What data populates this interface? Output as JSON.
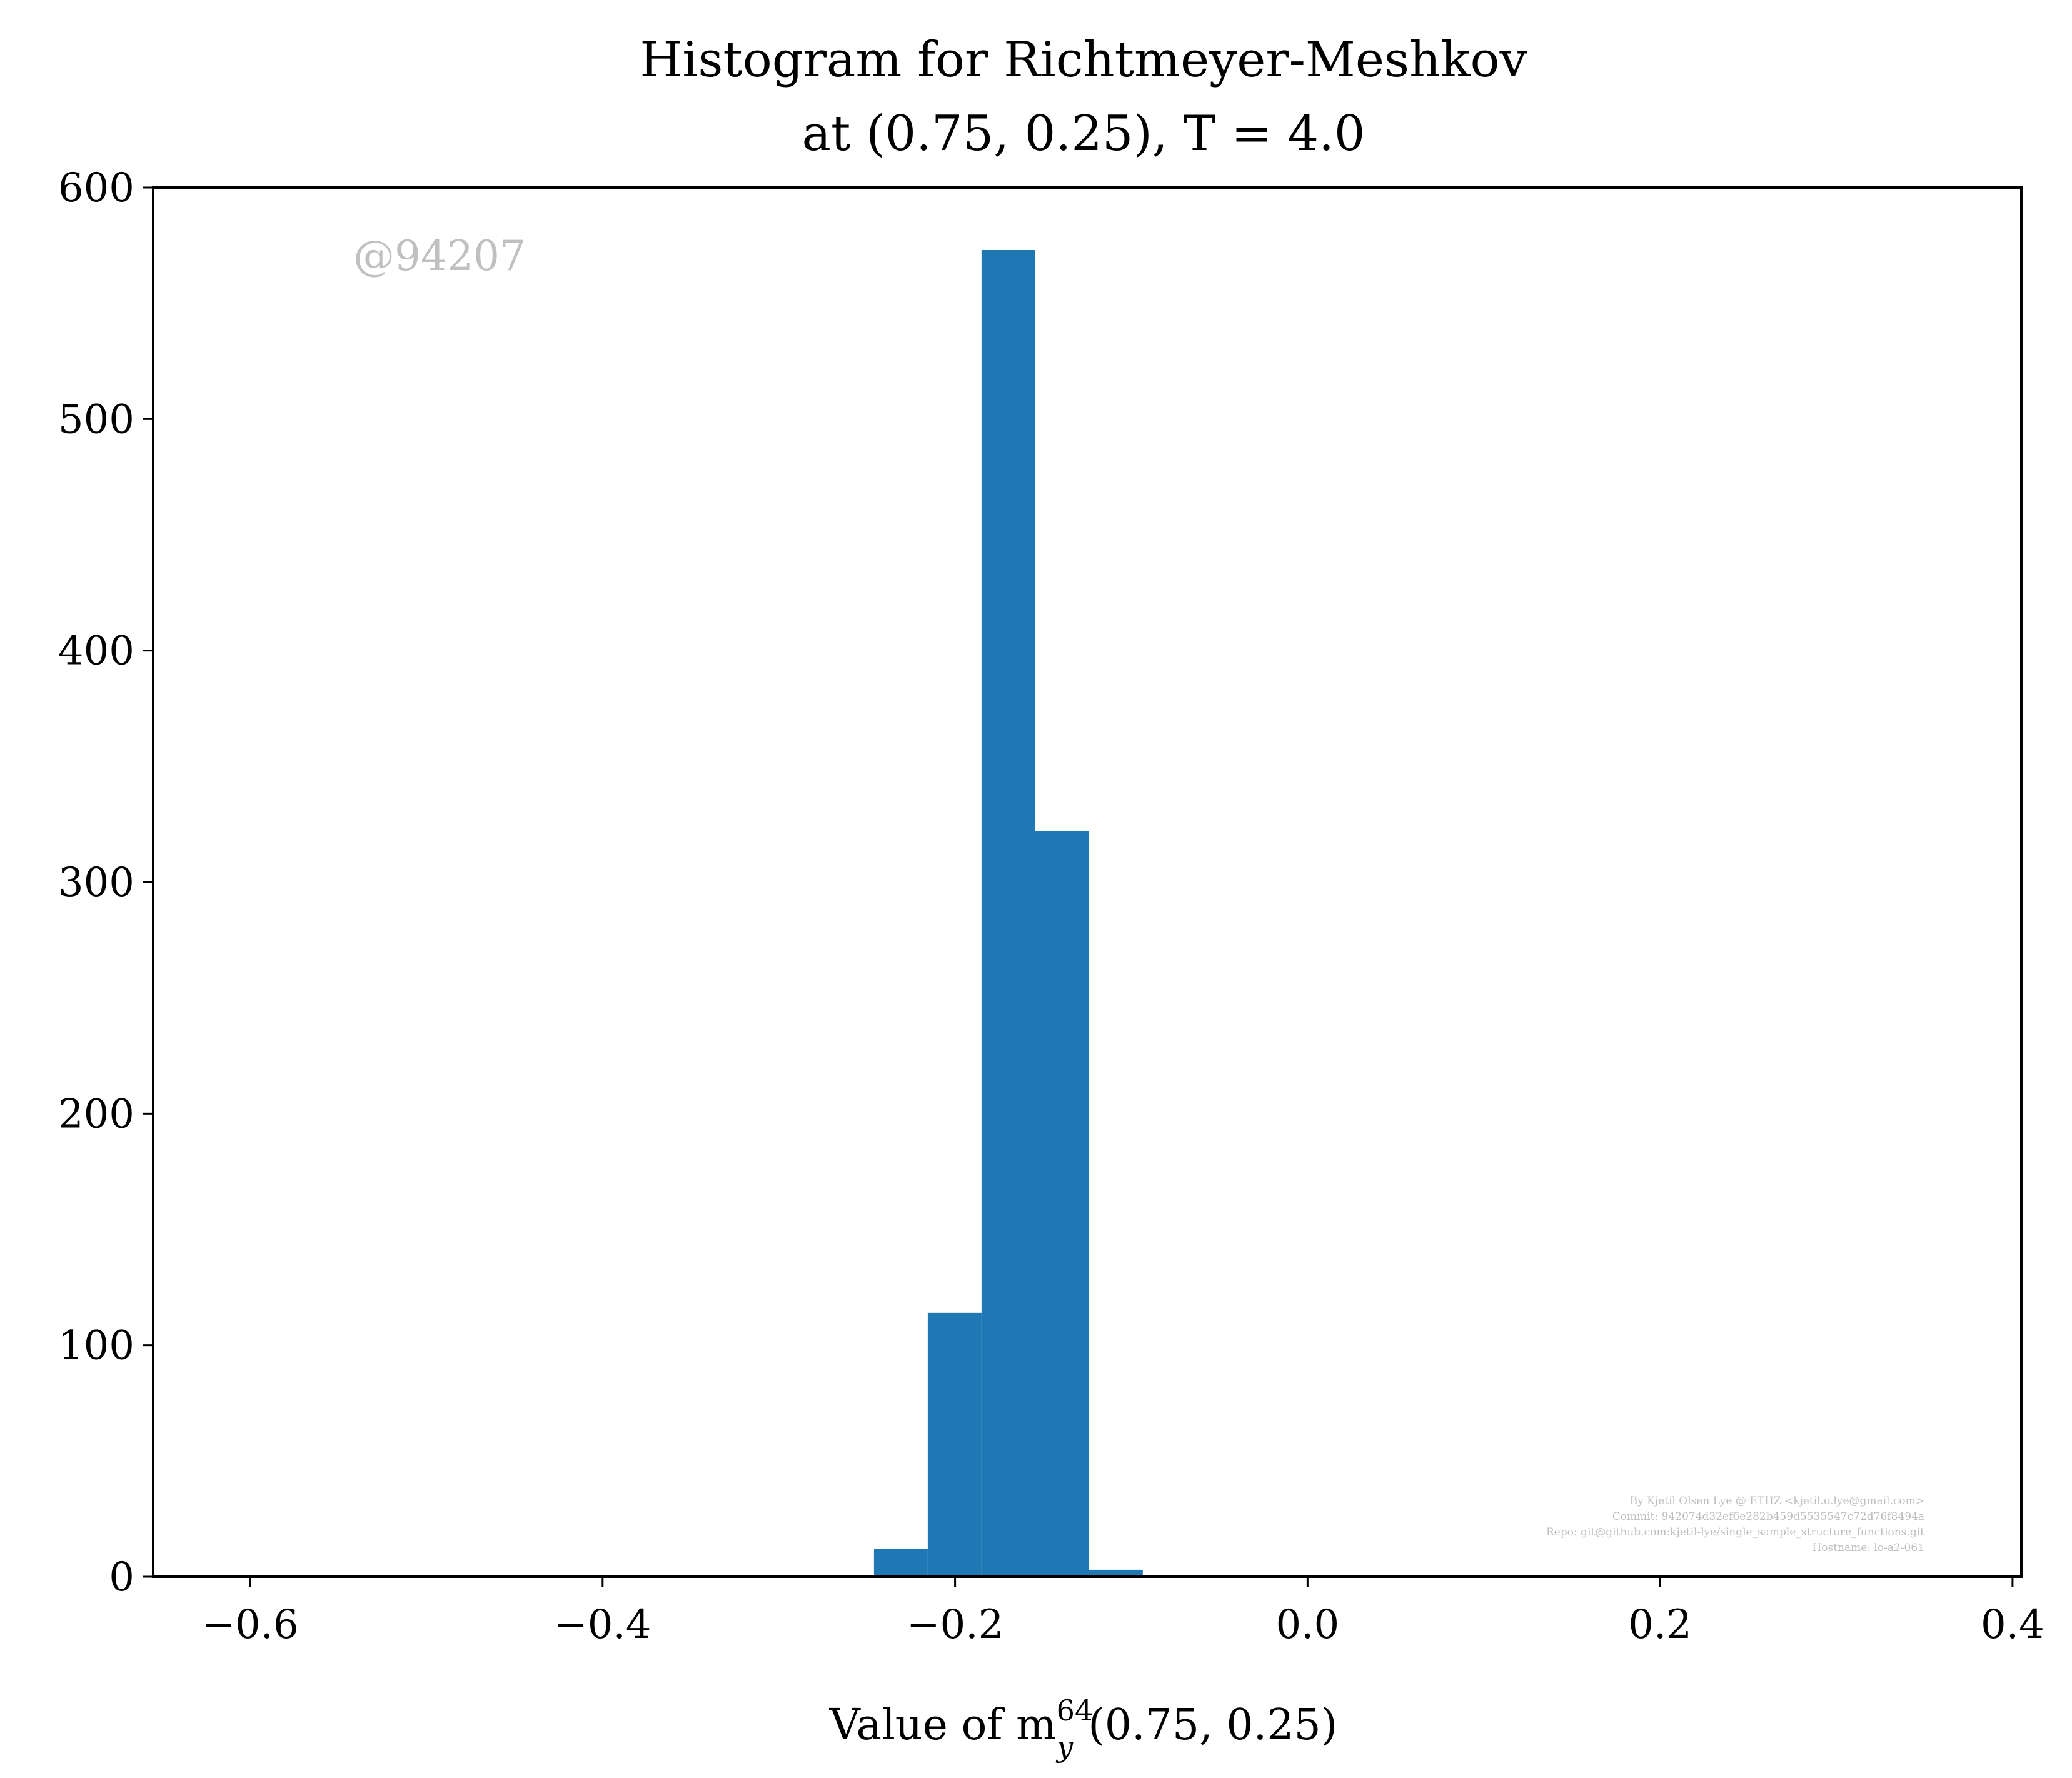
{
  "chart_data": {
    "type": "bar",
    "title": [
      "Histogram for Richtmeyer-Meshkov",
      "at (0.75, 0.25), T = 4.0"
    ],
    "xlabel": {
      "prefix": "Value of m",
      "sup": "64",
      "sub": "y",
      "suffix": "(0.75, 0.25)"
    },
    "ylabel": "",
    "xlim": [
      -0.655,
      0.405
    ],
    "ylim": [
      0,
      600
    ],
    "xticks": [
      -0.6,
      -0.4,
      -0.2,
      0.0,
      0.2,
      0.4
    ],
    "xtick_labels": [
      "−0.6",
      "−0.4",
      "−0.2",
      "0.0",
      "0.2",
      "0.4"
    ],
    "yticks": [
      0,
      100,
      200,
      300,
      400,
      500,
      600
    ],
    "ytick_labels": [
      "0",
      "100",
      "200",
      "300",
      "400",
      "500",
      "600"
    ],
    "bins": [
      {
        "x0": -0.246,
        "x1": -0.2155,
        "count": 12
      },
      {
        "x0": -0.2155,
        "x1": -0.185,
        "count": 114
      },
      {
        "x0": -0.185,
        "x1": -0.1545,
        "count": 573
      },
      {
        "x0": -0.1545,
        "x1": -0.124,
        "count": 322
      },
      {
        "x0": -0.124,
        "x1": -0.0935,
        "count": 3
      }
    ],
    "bar_color": "#1f77b4",
    "grid": false,
    "watermark": "@94207",
    "credits": [
      "By Kjetil Olsen Lye @ ETHZ <kjetil.o.lye@gmail.com>",
      "Commit: 942074d32ef6e282b459d5535547c72d76f8494a",
      "Repo: git@github.com:kjetil-lye/single_sample_structure_functions.git",
      "Hostname: lo-a2-061"
    ]
  }
}
